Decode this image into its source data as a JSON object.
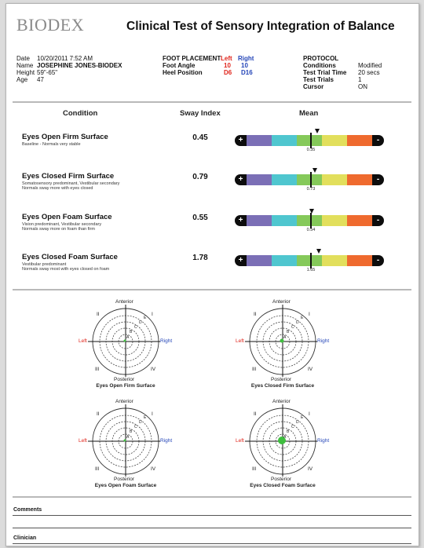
{
  "header": {
    "logo": "BIODEX",
    "title": "Clinical Test of Sensory Integration of Balance"
  },
  "patient": {
    "date_label": "Date",
    "date_value": "10/20/2011  7:52 AM",
    "name_label": "Name",
    "name_value": "JOSEPHINE JONES-BIODEX",
    "height_label": "Height",
    "height_value": "59\"-65\"",
    "age_label": "Age",
    "age_value": "47"
  },
  "foot": {
    "title": "FOOT PLACEMENT",
    "left": "Left",
    "right": "Right",
    "angle_label": "Foot Angle",
    "angle_left": "10",
    "angle_right": "10",
    "heel_label": "Heel Position",
    "heel_left": "D6",
    "heel_right": "D16"
  },
  "protocol": {
    "title": "PROTOCOL",
    "conditions_label": "Conditions",
    "conditions_value": "Modified",
    "trial_time_label": "Test Trial Time",
    "trial_time_value": "20 secs",
    "trials_label": "Test Trials",
    "trials_value": "1",
    "cursor_label": "Cursor",
    "cursor_value": "ON"
  },
  "table": {
    "col_condition": "Condition",
    "col_sway": "Sway Index",
    "col_mean": "Mean",
    "bar_colors": [
      "#7b6fb6",
      "#4fc6cf",
      "#85c95a",
      "#e2df5c",
      "#ef6a2e"
    ],
    "endcap_minus": "+",
    "endcap_plus": "-",
    "rows": [
      {
        "title": "Eyes Open Firm Surface",
        "desc1": "Baseline - Normals very stable",
        "desc2": "",
        "sway": "0.45",
        "mean": "0.35",
        "sway_value": 0.45,
        "mean_value": 0.35
      },
      {
        "title": "Eyes Closed Firm Surface",
        "desc1": "Somatosensory predominant, Vestibular secondary",
        "desc2": "Normals sway more with eyes closed",
        "sway": "0.79",
        "mean": "0.73",
        "sway_value": 0.79,
        "mean_value": 0.73
      },
      {
        "title": "Eyes Open Foam Surface",
        "desc1": "Vision predominant, Vestibular secondary",
        "desc2": "Normals sway more on foam than firm",
        "sway": "0.55",
        "mean": "0.54",
        "sway_value": 0.55,
        "mean_value": 0.54
      },
      {
        "title": "Eyes Closed Foam Surface",
        "desc1": "Vestibular predominant",
        "desc2": "Normals sway most with eyes closed on foam",
        "sway": "1.78",
        "mean": "1.65",
        "sway_value": 1.78,
        "mean_value": 1.65
      }
    ]
  },
  "targets": {
    "anterior": "Anterior",
    "posterior": "Posterior",
    "left": "Left",
    "right": "Right",
    "q1": "I",
    "q2": "II",
    "q3": "III",
    "q4": "IV",
    "ring_a": "A",
    "ring_b": "B",
    "ring_c": "C",
    "ring_d": "D",
    "ring_e": "E",
    "captions": [
      "Eyes Open Firm Surface",
      "Eyes Closed Firm Surface",
      "Eyes Open Foam Surface",
      "Eyes Closed Foam Surface"
    ]
  },
  "footer": {
    "comments_label": "Comments",
    "clinician_label": "Clinician"
  }
}
